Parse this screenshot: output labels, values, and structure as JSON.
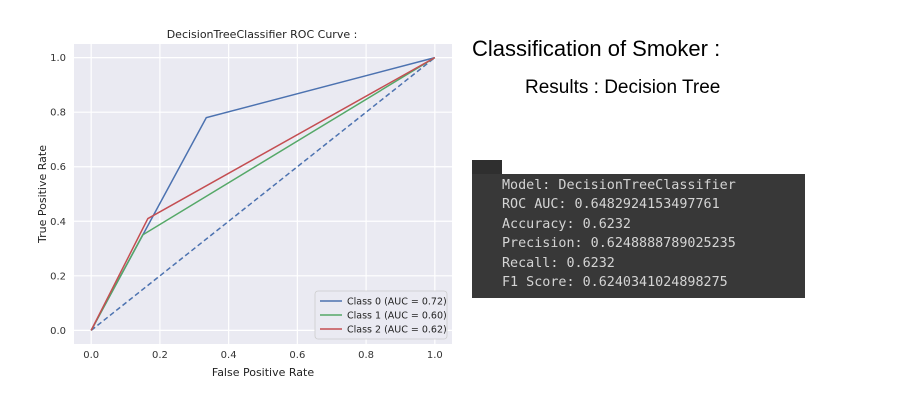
{
  "chart_data": {
    "type": "line",
    "title": "DecisionTreeClassifier ROC Curve :",
    "xlabel": "False Positive Rate",
    "ylabel": "True Positive Rate",
    "xlim": [
      -0.05,
      1.05
    ],
    "ylim": [
      -0.05,
      1.05
    ],
    "xticks": [
      "0.0",
      "0.2",
      "0.4",
      "0.6",
      "0.8",
      "1.0"
    ],
    "yticks": [
      "0.0",
      "0.2",
      "0.4",
      "0.6",
      "0.8",
      "1.0"
    ],
    "grid": true,
    "legend_position": "bottom-right",
    "series": [
      {
        "name": "Class 0 (AUC = 0.72)",
        "color": "#4c72b0",
        "x": [
          0.0,
          0.335,
          1.0
        ],
        "y": [
          0.0,
          0.78,
          1.0
        ]
      },
      {
        "name": "Class 1 (AUC = 0.60)",
        "color": "#55a868",
        "x": [
          0.0,
          0.15,
          1.0
        ],
        "y": [
          0.0,
          0.35,
          1.0
        ]
      },
      {
        "name": "Class 2 (AUC = 0.62)",
        "color": "#c44e52",
        "x": [
          0.0,
          0.165,
          1.0
        ],
        "y": [
          0.0,
          0.41,
          1.0
        ]
      }
    ],
    "reference_line": {
      "style": "dashed",
      "color": "#4c72b0",
      "x": [
        0.0,
        1.0
      ],
      "y": [
        0.0,
        1.0
      ]
    }
  },
  "results": {
    "heading": "Classification of Smoker :",
    "subheading": "Results : Decision Tree",
    "console_lines": [
      "Model: DecisionTreeClassifier",
      "ROC AUC: 0.6482924153497761",
      "Accuracy: 0.6232",
      "Precision: 0.6248888789025235",
      "Recall: 0.6232",
      "F1 Score: 0.6240341024898275"
    ]
  }
}
